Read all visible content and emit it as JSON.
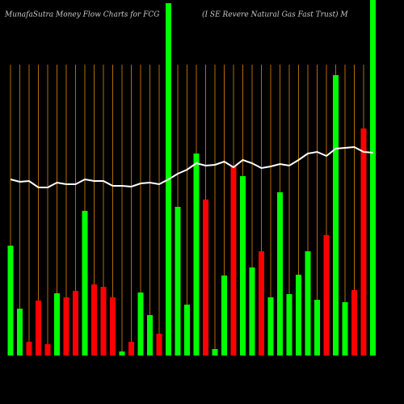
{
  "chart_data": {
    "type": "bar",
    "title": "MunafaSutra  Money  Flow  Charts for FCG",
    "subtitle": "(I                              SE Revere   Natural Gas Fast Trust) M",
    "categories": [
      null,
      null,
      null,
      null,
      null,
      null,
      null,
      null,
      null,
      null,
      null,
      null,
      null,
      null,
      null,
      null,
      null,
      null,
      null,
      null,
      null,
      null,
      null,
      null,
      null,
      null,
      null,
      null,
      null,
      null,
      null,
      null,
      null,
      null,
      null,
      null,
      null,
      null,
      null,
      null
    ],
    "values": [
      136,
      58,
      17,
      68,
      14,
      77,
      72,
      80,
      179,
      88,
      85,
      72,
      5,
      17,
      78,
      50,
      27,
      436,
      184,
      63,
      250,
      193,
      8,
      99,
      235,
      222,
      109,
      129,
      72,
      202,
      76,
      100,
      129,
      69,
      149,
      347,
      66,
      81,
      281,
      440
    ],
    "colors": [
      "#00ff00",
      "#00ff00",
      "#ff0000",
      "#ff0000",
      "#ff0000",
      "#00ff00",
      "#ff0000",
      "#ff0000",
      "#00ff00",
      "#ff0000",
      "#ff0000",
      "#ff0000",
      "#00ff00",
      "#ff0000",
      "#00ff00",
      "#00ff00",
      "#ff0000",
      "#00ff00",
      "#00ff00",
      "#00ff00",
      "#00ff00",
      "#ff0000",
      "#00ff00",
      "#00ff00",
      "#ff0000",
      "#00ff00",
      "#00ff00",
      "#ff0000",
      "#00ff00",
      "#00ff00",
      "#00ff00",
      "#00ff00",
      "#00ff00",
      "#00ff00",
      "#ff0000",
      "#00ff00",
      "#00ff00",
      "#ff0000",
      "#ff0000",
      "#00ff00"
    ],
    "line": {
      "color": "#ffffff",
      "values": [
        218,
        215,
        216,
        208,
        208,
        214,
        212,
        212,
        218,
        216,
        216,
        210,
        210,
        209,
        213,
        214,
        212,
        218,
        225,
        230,
        238,
        235,
        236,
        240,
        233,
        242,
        238,
        232,
        234,
        237,
        235,
        242,
        250,
        252,
        247,
        256,
        257,
        258,
        252,
        251
      ]
    },
    "ylim": [
      0,
      440
    ],
    "grid_color": "#b36b00"
  }
}
